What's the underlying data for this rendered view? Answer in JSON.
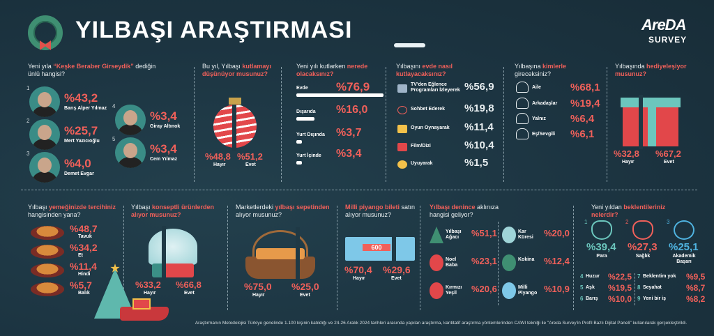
{
  "header": {
    "title": "YILBAŞI ARAŞTIRMASI",
    "logo": "AreDA",
    "logo_sub": "SURVEY"
  },
  "colors": {
    "background": "#1c3441",
    "accent_red": "#f0605a",
    "accent_teal": "#6cc6bd",
    "accent_blue": "#4fb3e0"
  },
  "celebs": {
    "question": [
      {
        "t": "Yeni yıla "
      },
      {
        "t": "“Keşke Beraber Girseydik”",
        "hl": true
      },
      {
        "t": " dediğin ünlü hangisi?"
      }
    ],
    "items": [
      {
        "rank": "1",
        "pct": "%43,2",
        "name": "Barış Alper Yılmaz"
      },
      {
        "rank": "2",
        "pct": "%25,7",
        "name": "Mert Yazıcıoğlu"
      },
      {
        "rank": "3",
        "pct": "%4,0",
        "name": "Demet Evgar"
      },
      {
        "rank": "4",
        "pct": "%3,4",
        "name": "Giray Altınok"
      },
      {
        "rank": "5",
        "pct": "%3,4",
        "name": "Cem Yılmaz"
      }
    ]
  },
  "celebrate": {
    "question": [
      {
        "t": "Bu yıl, Yılbaşı "
      },
      {
        "t": "kutlamayı düşünüyor musunuz?",
        "hl": true
      }
    ],
    "split": 48.8,
    "options": [
      {
        "pct": "%48,8",
        "label": "Hayır"
      },
      {
        "pct": "%51,2",
        "label": "Evet"
      }
    ]
  },
  "where": {
    "question": [
      {
        "t": "Yeni yılı kutlarken "
      },
      {
        "t": "nerede olacaksınız?",
        "hl": true
      }
    ],
    "items": [
      {
        "label": "Evde",
        "pct": "%76,9",
        "value": 76.9
      },
      {
        "label": "Dışarıda",
        "pct": "%16,0",
        "value": 16.0
      },
      {
        "label": "Yurt Dışında",
        "pct": "%3,7",
        "value": 3.7
      },
      {
        "label": "Yurt İçinde",
        "pct": "%3,4",
        "value": 3.4
      }
    ]
  },
  "home": {
    "question": [
      {
        "t": "Yılbaşını "
      },
      {
        "t": "evde nasıl kutlayacaksınız?",
        "hl": true
      }
    ],
    "items": [
      {
        "icon": "tv-icon",
        "label": "TV'den Eğlence Programları İzleyerek",
        "pct": "%56,9"
      },
      {
        "icon": "chat-bubble-icon",
        "label": "Sohbet Ederek",
        "pct": "%19,8"
      },
      {
        "icon": "game-blocks-icon",
        "label": "Oyun Oynayarak",
        "pct": "%11,4"
      },
      {
        "icon": "popcorn-icon",
        "label": "Film/Dizi",
        "pct": "%10,4"
      },
      {
        "icon": "moon-sleep-icon",
        "label": "Uyuyarak",
        "pct": "%1,5"
      }
    ]
  },
  "company": {
    "question": [
      {
        "t": "Yılbaşına "
      },
      {
        "t": "kimlerle",
        "hl": true
      },
      {
        "t": " gireceksiniz?"
      }
    ],
    "items": [
      {
        "icon": "family-icon",
        "label": "Aile",
        "pct": "%68,1"
      },
      {
        "icon": "friends-icon",
        "label": "Arkadaşlar",
        "pct": "%19,4"
      },
      {
        "icon": "person-icon",
        "label": "Yalnız",
        "pct": "%6,4"
      },
      {
        "icon": "couple-icon",
        "label": "Eş/Sevgili",
        "pct": "%6,1"
      }
    ]
  },
  "gifts": {
    "question": [
      {
        "t": "Yılbaşında "
      },
      {
        "t": "hediyeleşiyor musunuz?",
        "hl": true
      }
    ],
    "split": 32.8,
    "options": [
      {
        "pct": "%32,8",
        "label": "Hayır"
      },
      {
        "pct": "%67,2",
        "label": "Evet"
      }
    ]
  },
  "food": {
    "question": [
      {
        "t": "Yılbaşı "
      },
      {
        "t": "yemeğinizde tercihiniz",
        "hl": true
      },
      {
        "t": " hangisinden yana?"
      }
    ],
    "items": [
      {
        "icon": "roast-chicken-icon",
        "pct": "%48,7",
        "label": "Tavuk"
      },
      {
        "icon": "meat-icon",
        "pct": "%34,2",
        "label": "Et"
      },
      {
        "icon": "turkey-icon",
        "pct": "%11,4",
        "label": "Hindi"
      },
      {
        "icon": "fish-icon",
        "pct": "%5,7",
        "label": "Balık"
      }
    ]
  },
  "concept": {
    "question": [
      {
        "t": "Yılbaşı "
      },
      {
        "t": "konseptli ürünlerden alıyor musunuz?",
        "hl": true
      }
    ],
    "split": 33.2,
    "options": [
      {
        "pct": "%33,2",
        "label": "Hayır"
      },
      {
        "pct": "%66,8",
        "label": "Evet"
      }
    ]
  },
  "basket": {
    "question": [
      {
        "t": "Marketlerdeki "
      },
      {
        "t": "yılbaşı sepetinden",
        "hl": true
      },
      {
        "t": " alıyor musunuz?"
      }
    ],
    "split": 75.0,
    "options": [
      {
        "pct": "%75,0",
        "label": "Hayır"
      },
      {
        "pct": "%25,0",
        "label": "Evet"
      }
    ]
  },
  "lottery": {
    "question": [
      {
        "t": "Milli piyango bileti",
        "hl": true
      },
      {
        "t": " satın alıyor musunuz?"
      }
    ],
    "split": 70.4,
    "ticket_text": "600",
    "options": [
      {
        "pct": "%70,4",
        "label": "Hayır"
      },
      {
        "pct": "%29,6",
        "label": "Evet"
      }
    ]
  },
  "associations": {
    "question": [
      {
        "t": "Yılbaşı denince",
        "hl": true
      },
      {
        "t": " aklınıza hangisi geliyor?"
      }
    ],
    "items": [
      {
        "icon": "christmas-tree-icon",
        "label": "Yılbaşı Ağacı",
        "pct": "%51,1"
      },
      {
        "icon": "santa-icon",
        "label": "Noel Baba",
        "pct": "%23,1"
      },
      {
        "icon": "ornaments-icon",
        "label": "Kırmızı Yeşil",
        "pct": "%20,6"
      },
      {
        "icon": "snow-globe-icon",
        "label": "Kar Küresi",
        "pct": "%20,0"
      },
      {
        "icon": "poinsettia-icon",
        "label": "Kokina",
        "pct": "%12,4"
      },
      {
        "icon": "lottery-ticket-icon",
        "label": "Milli Piyango",
        "pct": "%10,9"
      }
    ]
  },
  "expectations": {
    "question": [
      {
        "t": "Yeni yıldan "
      },
      {
        "t": "beklentileriniz nelerdir?",
        "hl": true
      }
    ],
    "top": [
      {
        "rank": "1",
        "icon": "money-bag-hand-icon",
        "pct": "%39,4",
        "label": "Para",
        "color": "#6cc6bd"
      },
      {
        "rank": "2",
        "icon": "heart-pulse-icon",
        "pct": "%27,3",
        "label": "Sağlık",
        "color": "#f0605a"
      },
      {
        "rank": "3",
        "icon": "target-icon",
        "pct": "%25,1",
        "label": "Akademik Başarı",
        "color": "#4fb3e0"
      }
    ],
    "rest": [
      {
        "rank": "4",
        "label": "Huzur",
        "pct": "%22,5"
      },
      {
        "rank": "5",
        "label": "Aşk",
        "pct": "%19,5"
      },
      {
        "rank": "6",
        "label": "Barış",
        "pct": "%10,0"
      },
      {
        "rank": "7",
        "label": "Beklentim yok",
        "pct": "%9,5"
      },
      {
        "rank": "8",
        "label": "Seyahat",
        "pct": "%8,7"
      },
      {
        "rank": "9",
        "label": "Yeni bir iş",
        "pct": "%8,2"
      }
    ]
  },
  "footer": "Araştırmanın Metodolojisi Türkiye genelinde 1.100 kişinin katıldığı ve 24-26 Aralık 2024 tarihleri arasında yapılan araştırma, kantitatif araştırma yöntemlerinden CAWI tekniği ile \"Areda Survey'in Profil Bazlı Dijital Paneli\" kullanılarak gerçekleştirildi."
}
